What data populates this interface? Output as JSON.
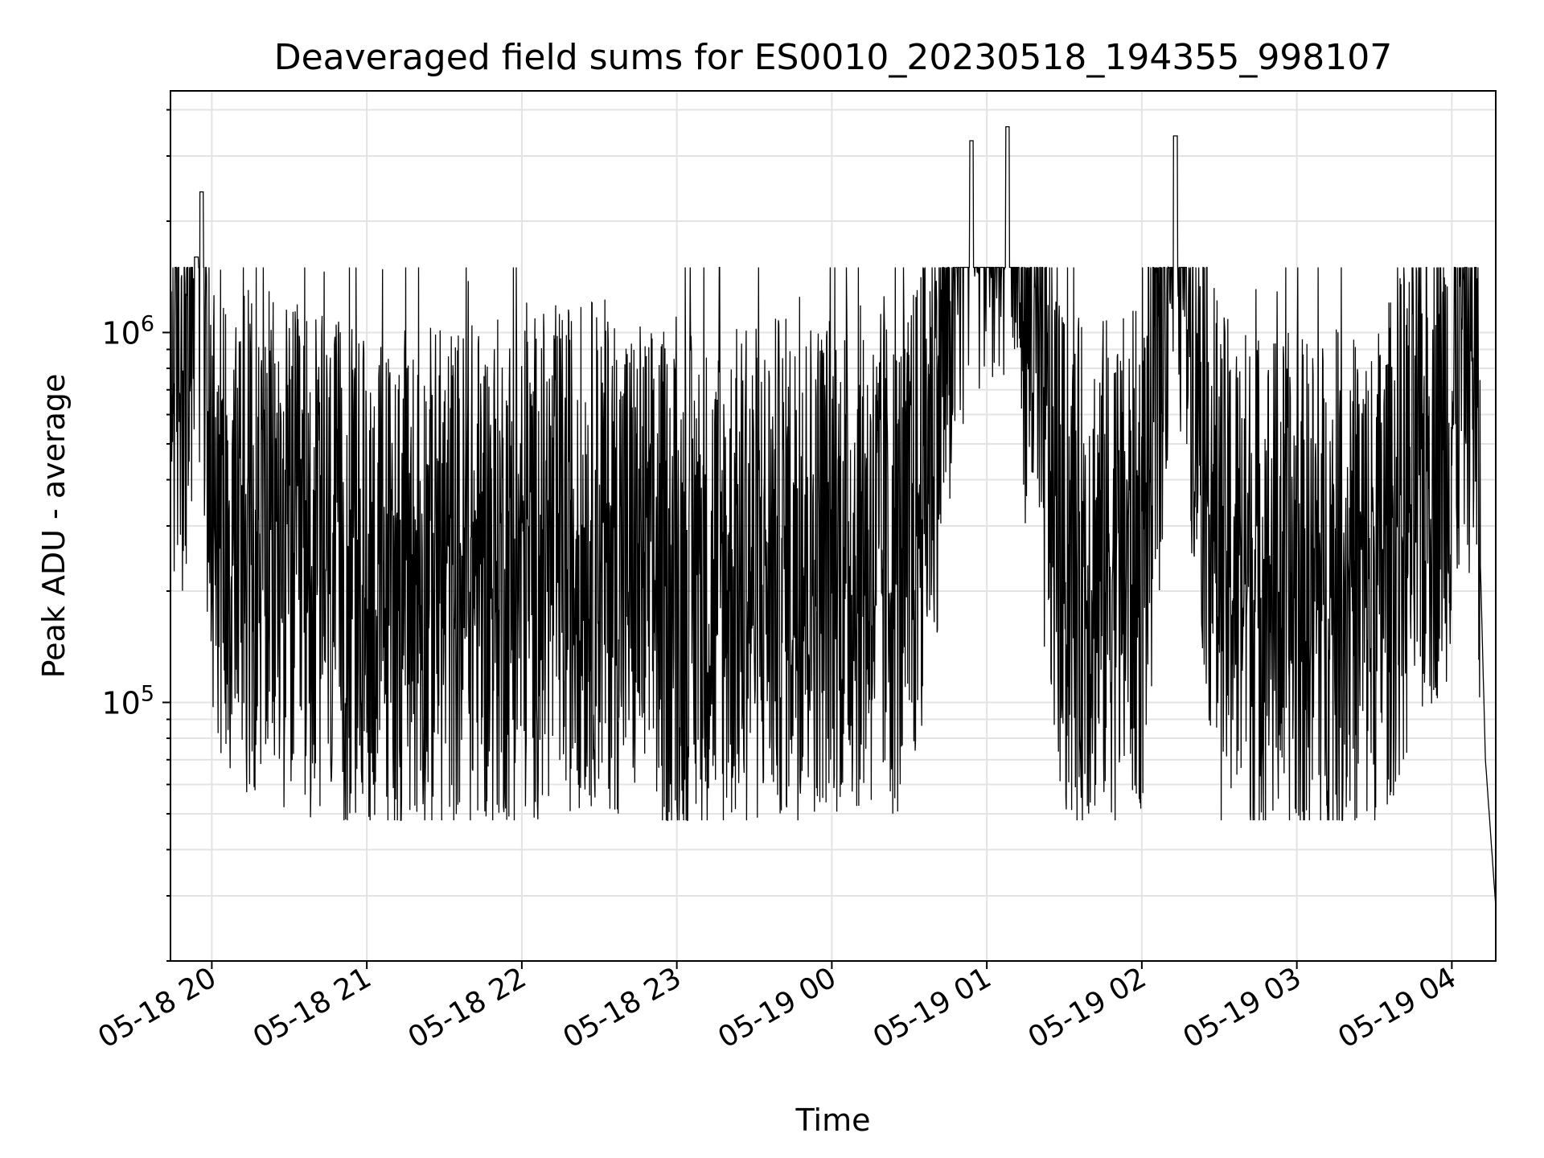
{
  "chart_data": {
    "type": "line",
    "title": "Deaveraged field sums for ES0010_20230518_194355_998107",
    "xlabel": "Time",
    "ylabel": "Peak ADU - average",
    "y_scale": "log",
    "x_range": [
      "2023-05-18 19:44",
      "2023-05-19 04:17"
    ],
    "ylim": [
      20000,
      4500000
    ],
    "grid": true,
    "x_ticks": [
      "05-18 20",
      "05-18 21",
      "05-18 22",
      "05-18 23",
      "05-19 00",
      "05-19 01",
      "05-19 02",
      "05-19 03",
      "05-19 04"
    ],
    "y_ticks": [
      {
        "base": "10",
        "exp": "5",
        "value": 100000
      },
      {
        "base": "10",
        "exp": "6",
        "value": 1000000
      }
    ],
    "series": [
      {
        "color": "#000000",
        "points": [
          {
            "x": "2023-05-18 19:44",
            "y": 950000
          },
          {
            "x": "2023-05-18 19:51",
            "y": 1000000
          },
          {
            "x": "2023-05-18 19:54",
            "y": 1600000
          },
          {
            "x": "2023-05-18 19:56",
            "y": 2400000
          },
          {
            "x": "2023-05-18 19:59",
            "y": 500000
          },
          {
            "x": "2023-05-18 20:05",
            "y": 300000
          },
          {
            "x": "2023-05-18 20:30",
            "y": 250000
          },
          {
            "x": "2023-05-18 21:00",
            "y": 200000
          },
          {
            "x": "2023-05-18 21:30",
            "y": 220000
          },
          {
            "x": "2023-05-18 22:00",
            "y": 230000
          },
          {
            "x": "2023-05-18 22:30",
            "y": 260000
          },
          {
            "x": "2023-05-18 23:00",
            "y": 200000
          },
          {
            "x": "2023-05-18 23:30",
            "y": 220000
          },
          {
            "x": "2023-05-19 00:00",
            "y": 250000
          },
          {
            "x": "2023-05-19 00:30",
            "y": 230000
          },
          {
            "x": "2023-05-19 00:54",
            "y": 3300000
          },
          {
            "x": "2023-05-19 01:08",
            "y": 3600000
          },
          {
            "x": "2023-05-19 01:30",
            "y": 220000
          },
          {
            "x": "2023-05-19 02:00",
            "y": 240000
          },
          {
            "x": "2023-05-19 02:13",
            "y": 3400000
          },
          {
            "x": "2023-05-19 02:30",
            "y": 230000
          },
          {
            "x": "2023-05-19 03:00",
            "y": 200000
          },
          {
            "x": "2023-05-19 03:30",
            "y": 210000
          },
          {
            "x": "2023-05-19 04:00",
            "y": 600000
          },
          {
            "x": "2023-05-19 04:05",
            "y": 1300000
          },
          {
            "x": "2023-05-19 04:09",
            "y": 850000
          },
          {
            "x": "2023-05-19 04:13",
            "y": 70000
          },
          {
            "x": "2023-05-19 04:17",
            "y": 28000
          }
        ]
      }
    ]
  }
}
